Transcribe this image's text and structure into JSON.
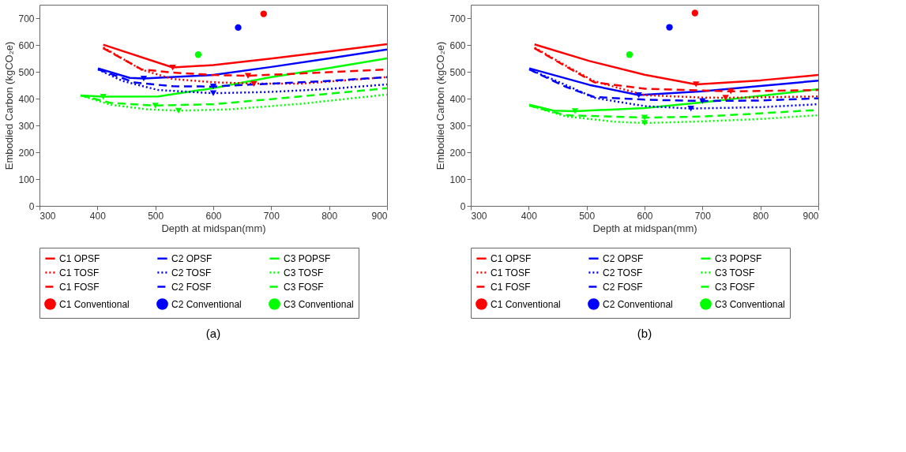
{
  "chart_data": [
    {
      "type": "line",
      "title": "(a)",
      "xlabel": "Depth at midspan(mm)",
      "ylabel": "Embodied Carbon (kgCO₂e)",
      "xlim": [
        300,
        900
      ],
      "xticks": [
        300,
        400,
        500,
        600,
        700,
        800,
        900
      ],
      "ylim": [
        0,
        750
      ],
      "yticks": [
        0,
        100,
        200,
        300,
        400,
        500,
        600,
        700
      ],
      "grid": false,
      "legend": "bottom",
      "series": [
        {
          "name": "C1 OPSF",
          "color": "#ff0000",
          "line_style": "solid",
          "x": [
            410,
            530,
            600,
            700,
            800,
            900
          ],
          "values": [
            601,
            516,
            525,
            549,
            576,
            603
          ]
        },
        {
          "name": "C2 OPSF",
          "color": "#0000ff",
          "line_style": "solid",
          "x": [
            401,
            456,
            480,
            600,
            700,
            800,
            900
          ],
          "values": [
            513,
            477,
            475,
            488,
            518,
            550,
            583
          ]
        },
        {
          "name": "C3 POPSF",
          "color": "#00ff00",
          "line_style": "solid",
          "x": [
            371,
            410,
            505,
            600,
            700,
            800,
            900
          ],
          "values": [
            412,
            407,
            408,
            439,
            480,
            514,
            550
          ]
        },
        {
          "name": "C1 TOSF",
          "color": "#ff0000",
          "line_style": "dotted",
          "x": [
            410,
            476,
            530,
            600,
            670,
            753,
            900
          ],
          "values": [
            591,
            508,
            473,
            461,
            456,
            456,
            480
          ]
        },
        {
          "name": "C2 TOSF",
          "color": "#0000ff",
          "line_style": "dotted",
          "x": [
            401,
            443,
            505,
            600,
            700,
            800,
            900
          ],
          "values": [
            509,
            466,
            432,
            420,
            425,
            436,
            453
          ]
        },
        {
          "name": "C3 TOSF",
          "color": "#00ff00",
          "line_style": "dotted",
          "x": [
            371,
            423,
            485,
            540,
            629,
            753,
            900
          ],
          "values": [
            412,
            377,
            360,
            355,
            360,
            381,
            415
          ]
        },
        {
          "name": "C1 FOSF",
          "color": "#ff0000",
          "line_style": "dashed",
          "x": [
            410,
            476,
            530,
            600,
            660,
            753,
            900
          ],
          "values": [
            588,
            509,
            497,
            488,
            485,
            494,
            509
          ]
        },
        {
          "name": "C2 FOSF",
          "color": "#0000ff",
          "line_style": "dashed",
          "x": [
            401,
            464,
            530,
            600,
            670,
            800,
            900
          ],
          "values": [
            509,
            460,
            446,
            445,
            453,
            466,
            480
          ]
        },
        {
          "name": "C3 FOSF",
          "color": "#00ff00",
          "line_style": "dashed",
          "x": [
            371,
            423,
            500,
            600,
            700,
            800,
            900
          ],
          "values": [
            412,
            384,
            374,
            379,
            398,
            418,
            439
          ]
        },
        {
          "name": "C1 Conventional",
          "color": "#ff0000",
          "type": "scatter",
          "marker": "circle",
          "x": [
            687
          ],
          "values": [
            716
          ]
        },
        {
          "name": "C2 Conventional",
          "color": "#0000ff",
          "type": "scatter",
          "marker": "circle",
          "x": [
            643
          ],
          "values": [
            665
          ]
        },
        {
          "name": "C3 Conventional",
          "color": "#00ff00",
          "type": "scatter",
          "marker": "circle",
          "x": [
            574
          ],
          "values": [
            564
          ]
        },
        {
          "color": "#ff0000",
          "type": "scatter",
          "marker": "triangle",
          "x": [
            530,
            670,
            660
          ],
          "values": [
            516,
            455,
            485
          ]
        },
        {
          "color": "#0000ff",
          "type": "scatter",
          "marker": "triangle",
          "x": [
            480,
            600,
            600
          ],
          "values": [
            475,
            420,
            445
          ]
        },
        {
          "color": "#00ff00",
          "type": "scatter",
          "marker": "triangle",
          "x": [
            410,
            540,
            500
          ],
          "values": [
            407,
            355,
            374
          ]
        }
      ]
    },
    {
      "type": "line",
      "title": "(b)",
      "xlabel": "Depth at midspan(mm)",
      "ylabel": "Embodied Carbon (kgCO₂e)",
      "xlim": [
        300,
        900
      ],
      "xticks": [
        300,
        400,
        500,
        600,
        700,
        800,
        900
      ],
      "ylim": [
        0,
        750
      ],
      "yticks": [
        0,
        100,
        200,
        300,
        400,
        500,
        600,
        700
      ],
      "grid": false,
      "legend": "bottom",
      "series": [
        {
          "name": "C1 OPSF",
          "color": "#ff0000",
          "line_style": "solid",
          "x": [
            410,
            505,
            600,
            689,
            800,
            900
          ],
          "values": [
            602,
            540,
            489,
            453,
            468,
            488
          ]
        },
        {
          "name": "C2 OPSF",
          "color": "#0000ff",
          "line_style": "solid",
          "x": [
            401,
            505,
            590,
            700,
            800,
            900
          ],
          "values": [
            513,
            451,
            413,
            427,
            447,
            467
          ]
        },
        {
          "name": "C3 POPSF",
          "color": "#00ff00",
          "line_style": "solid",
          "x": [
            401,
            443,
            480,
            600,
            700,
            800,
            900
          ],
          "values": [
            377,
            355,
            353,
            365,
            386,
            410,
            435
          ]
        },
        {
          "name": "C1 TOSF",
          "color": "#ff0000",
          "line_style": "dotted",
          "x": [
            410,
            464,
            513,
            600,
            700,
            740,
            900
          ],
          "values": [
            590,
            523,
            465,
            413,
            404,
            403,
            408
          ]
        },
        {
          "name": "C2 TOSF",
          "color": "#0000ff",
          "line_style": "dotted",
          "x": [
            401,
            464,
            513,
            600,
            680,
            800,
            900
          ],
          "values": [
            509,
            451,
            403,
            372,
            363,
            368,
            379
          ]
        },
        {
          "name": "C3 TOSF",
          "color": "#00ff00",
          "line_style": "dotted",
          "x": [
            401,
            464,
            547,
            600,
            700,
            800,
            900
          ],
          "values": [
            374,
            334,
            314,
            309,
            315,
            324,
            338
          ]
        },
        {
          "name": "C1 FOSF",
          "color": "#ff0000",
          "line_style": "dashed",
          "x": [
            410,
            464,
            513,
            600,
            700,
            749,
            900
          ],
          "values": [
            588,
            520,
            461,
            437,
            430,
            427,
            432
          ]
        },
        {
          "name": "C2 FOSF",
          "color": "#0000ff",
          "line_style": "dashed",
          "x": [
            401,
            464,
            513,
            600,
            700,
            800,
            900
          ],
          "values": [
            509,
            444,
            406,
            396,
            391,
            393,
            401
          ]
        },
        {
          "name": "C3 FOSF",
          "color": "#00ff00",
          "line_style": "dashed",
          "x": [
            401,
            464,
            600,
            700,
            800,
            900
          ],
          "values": [
            374,
            338,
            329,
            333,
            345,
            358
          ]
        },
        {
          "name": "C1 Conventional",
          "color": "#ff0000",
          "type": "scatter",
          "marker": "circle",
          "x": [
            687
          ],
          "values": [
            719
          ]
        },
        {
          "name": "C2 Conventional",
          "color": "#0000ff",
          "type": "scatter",
          "marker": "circle",
          "x": [
            643
          ],
          "values": [
            666
          ]
        },
        {
          "name": "C3 Conventional",
          "color": "#00ff00",
          "type": "scatter",
          "marker": "circle",
          "x": [
            574
          ],
          "values": [
            564
          ]
        },
        {
          "color": "#ff0000",
          "type": "scatter",
          "marker": "triangle",
          "x": [
            689,
            740,
            749
          ],
          "values": [
            453,
            403,
            427
          ]
        },
        {
          "color": "#0000ff",
          "type": "scatter",
          "marker": "triangle",
          "x": [
            590,
            680,
            700
          ],
          "values": [
            413,
            363,
            391
          ]
        },
        {
          "color": "#00ff00",
          "type": "scatter",
          "marker": "triangle",
          "x": [
            480,
            600,
            600
          ],
          "values": [
            353,
            309,
            329
          ]
        }
      ]
    }
  ]
}
